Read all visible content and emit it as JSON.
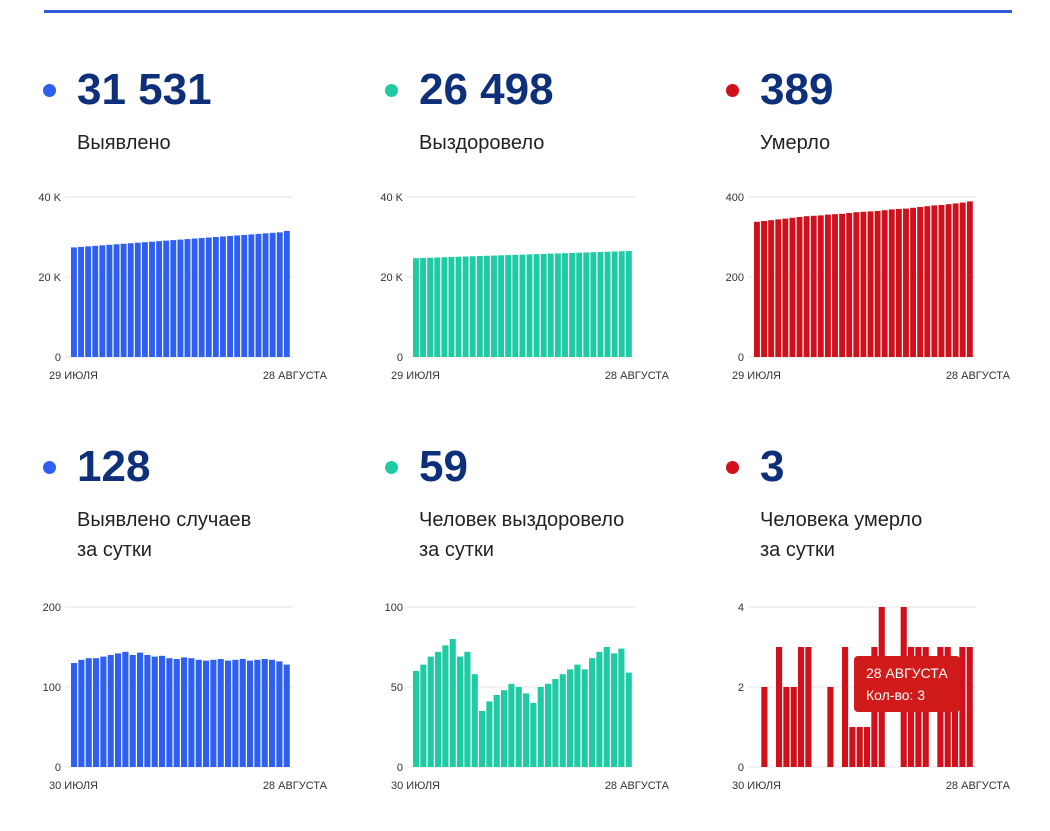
{
  "colors": {
    "blue": "#2f5ff0",
    "green": "#1fcba4",
    "red": "#d0111b",
    "accent_rule": "#2f5bd8"
  },
  "panels": [
    {
      "value": "31 531",
      "label1": "Выявлено",
      "label2": "",
      "dot_color": "#2f5ff0"
    },
    {
      "value": "26 498",
      "label1": "Выздоровело",
      "label2": "",
      "dot_color": "#1fcba4"
    },
    {
      "value": "389",
      "label1": "Умерло",
      "label2": "",
      "dot_color": "#d0111b"
    },
    {
      "value": "128",
      "label1": "Выявлено случаев",
      "label2": "за сутки",
      "dot_color": "#2f5ff0"
    },
    {
      "value": "59",
      "label1": "Человек выздоровело",
      "label2": "за сутки",
      "dot_color": "#1fcba4"
    },
    {
      "value": "3",
      "label1": "Человека умерло",
      "label2": "за сутки",
      "dot_color": "#d0111b"
    }
  ],
  "chart_data": [
    {
      "type": "bar",
      "color": "#2f5ff0",
      "ylim": [
        0,
        40000
      ],
      "yticks": [
        0,
        20000,
        40000
      ],
      "ytick_labels": [
        "0",
        "20 K",
        "40 K"
      ],
      "x_start_label": "29 ИЮЛЯ",
      "x_end_label": "28 АВГУСТА",
      "values": [
        27400,
        27530,
        27660,
        27790,
        27920,
        28050,
        28180,
        28310,
        28440,
        28570,
        28700,
        28830,
        28960,
        29090,
        29220,
        29350,
        29480,
        29610,
        29740,
        29870,
        30000,
        30130,
        30260,
        30390,
        30520,
        30650,
        30780,
        30910,
        31040,
        31170,
        31531
      ]
    },
    {
      "type": "bar",
      "color": "#1fcba4",
      "ylim": [
        0,
        40000
      ],
      "yticks": [
        0,
        20000,
        40000
      ],
      "ytick_labels": [
        "0",
        "20 K",
        "40 K"
      ],
      "x_start_label": "29 ИЮЛЯ",
      "x_end_label": "28 АВГУСТА",
      "values": [
        24700,
        24760,
        24820,
        24880,
        24940,
        25000,
        25060,
        25120,
        25180,
        25240,
        25300,
        25360,
        25420,
        25480,
        25540,
        25600,
        25660,
        25720,
        25780,
        25840,
        25900,
        25960,
        26020,
        26080,
        26140,
        26200,
        26260,
        26320,
        26380,
        26440,
        26498
      ]
    },
    {
      "type": "bar",
      "color": "#d0111b",
      "ylim": [
        0,
        400
      ],
      "yticks": [
        0,
        200,
        400
      ],
      "ytick_labels": [
        "0",
        "200",
        "400"
      ],
      "x_start_label": "29 ИЮЛЯ",
      "x_end_label": "28 АВГУСТА",
      "values": [
        338,
        340,
        342,
        344,
        346,
        348,
        350,
        352,
        353,
        354,
        356,
        357,
        358,
        360,
        362,
        363,
        364,
        365,
        367,
        369,
        370,
        371,
        373,
        375,
        377,
        379,
        380,
        382,
        384,
        386,
        389
      ]
    },
    {
      "type": "bar",
      "color": "#2f5ff0",
      "ylim": [
        0,
        200
      ],
      "yticks": [
        0,
        100,
        200
      ],
      "ytick_labels": [
        "0",
        "100",
        "200"
      ],
      "x_start_label": "30 ИЮЛЯ",
      "x_end_label": "28 АВГУСТА",
      "values": [
        130,
        134,
        136,
        136,
        138,
        140,
        142,
        144,
        140,
        143,
        140,
        138,
        139,
        136,
        135,
        137,
        136,
        134,
        133,
        134,
        135,
        133,
        134,
        135,
        133,
        134,
        135,
        134,
        132,
        128
      ]
    },
    {
      "type": "bar",
      "color": "#1fcba4",
      "ylim": [
        0,
        100
      ],
      "yticks": [
        0,
        50,
        100
      ],
      "ytick_labels": [
        "0",
        "50",
        "100"
      ],
      "x_start_label": "30 ИЮЛЯ",
      "x_end_label": "28 АВГУСТА",
      "values": [
        60,
        64,
        69,
        72,
        76,
        80,
        69,
        72,
        58,
        35,
        41,
        45,
        48,
        52,
        50,
        46,
        40,
        50,
        52,
        55,
        58,
        61,
        64,
        61,
        68,
        72,
        75,
        71,
        74,
        59
      ]
    },
    {
      "type": "bar",
      "color": "#d0111b",
      "ylim": [
        0,
        4
      ],
      "yticks": [
        0,
        2,
        4
      ],
      "ytick_labels": [
        "0",
        "2",
        "4"
      ],
      "x_start_label": "30 ИЮЛЯ",
      "x_end_label": "28 АВГУСТА",
      "values": [
        0,
        2,
        0,
        3,
        2,
        2,
        3,
        3,
        0,
        0,
        2,
        0,
        3,
        1,
        1,
        1,
        3,
        4,
        0,
        0,
        4,
        3,
        3,
        3,
        0,
        3,
        3,
        2,
        3,
        3
      ],
      "tooltip": {
        "date": "28 АВГУСТА",
        "text": "Кол-во: 3"
      }
    }
  ]
}
